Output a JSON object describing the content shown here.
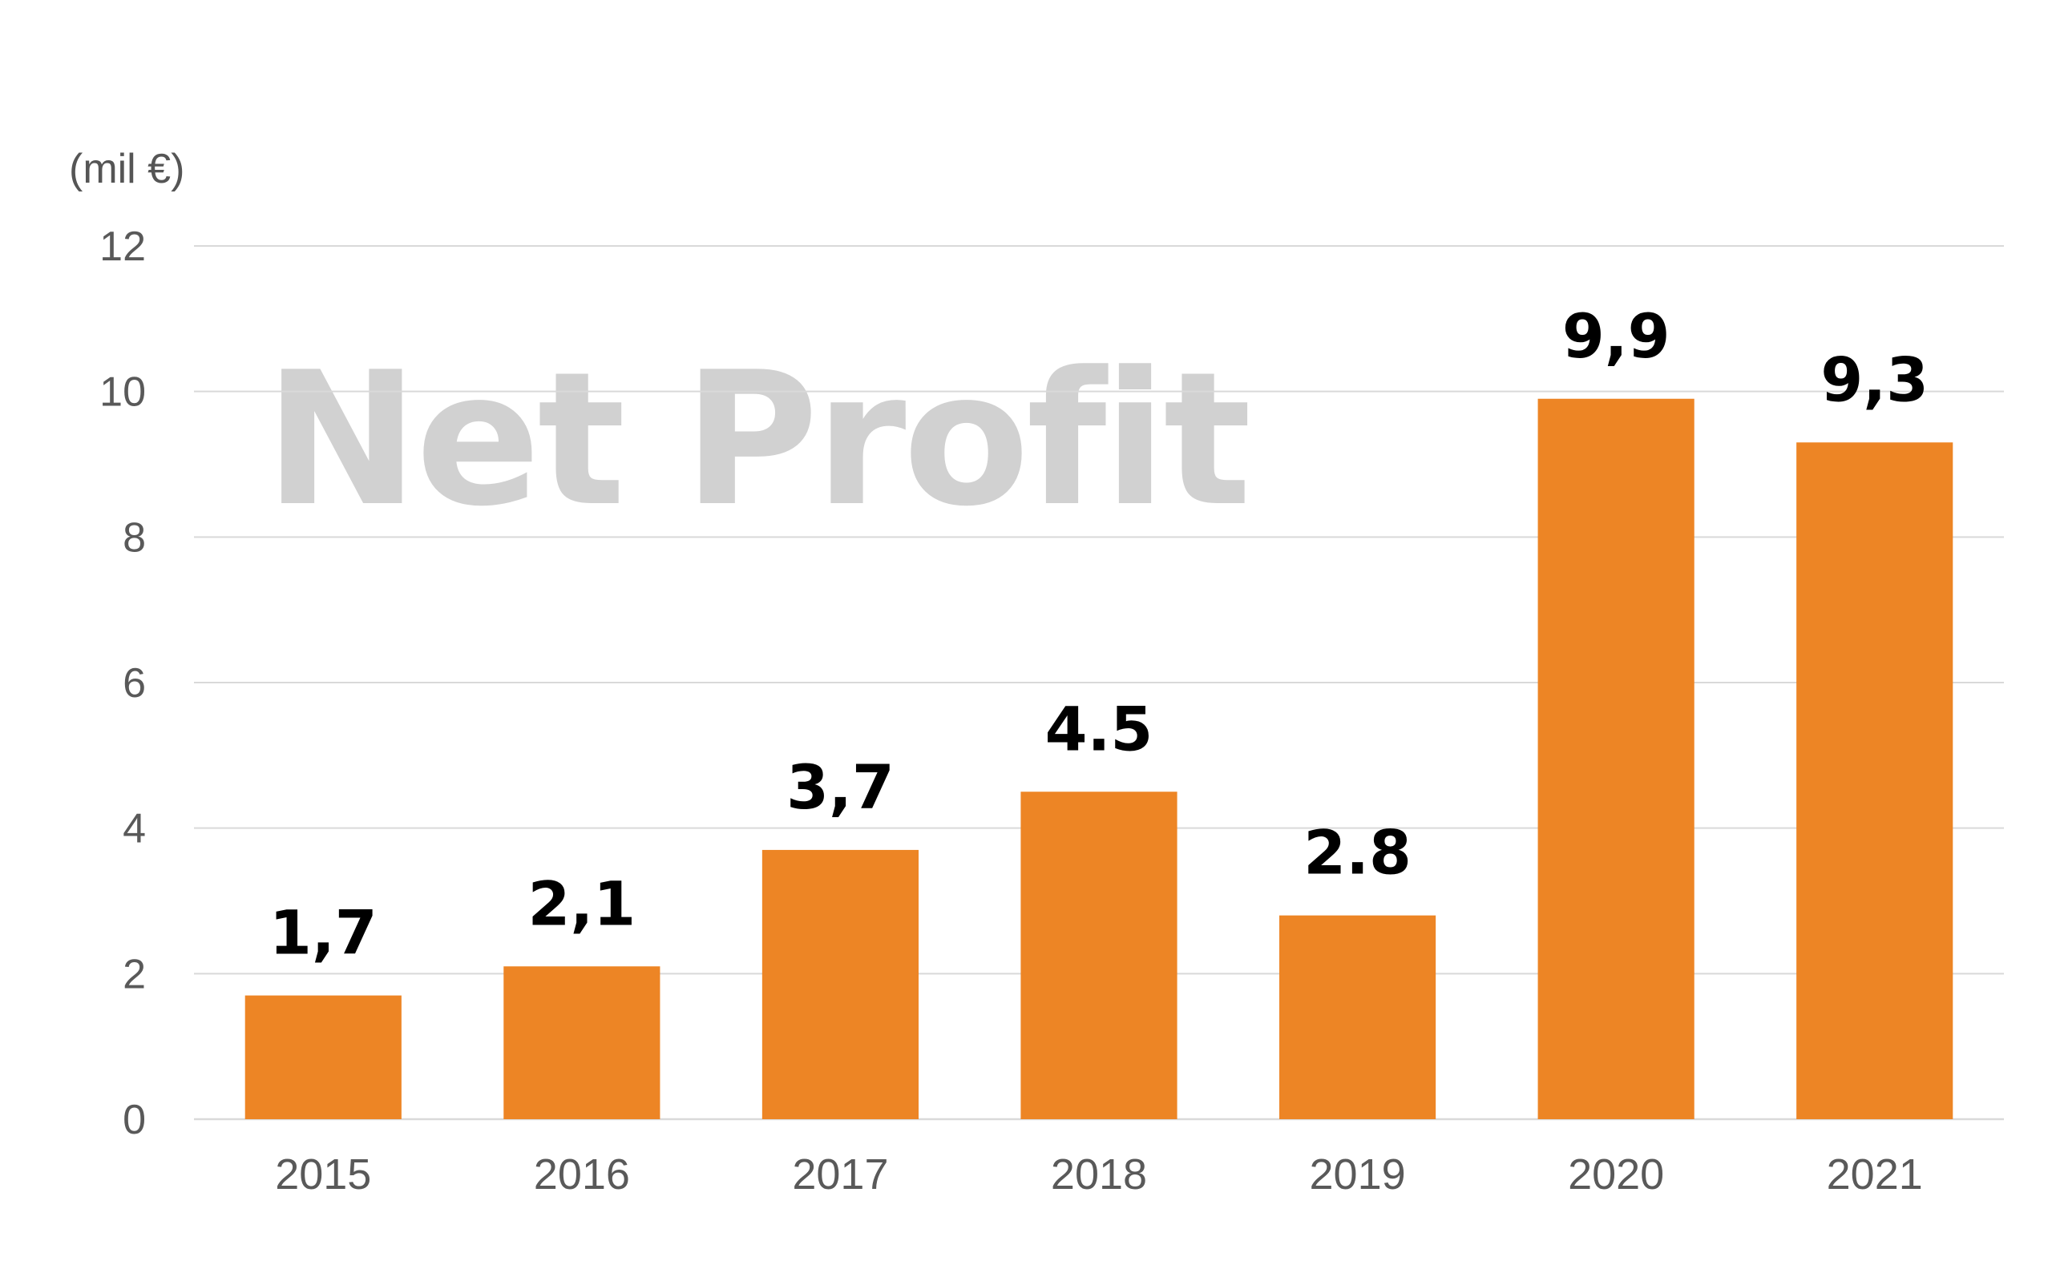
{
  "watermark_text": "Net Profit",
  "chart_data": {
    "type": "bar",
    "ylabel": "(mil €)",
    "categories": [
      "2015",
      "2016",
      "2017",
      "2018",
      "2019",
      "2020",
      "2021"
    ],
    "values": [
      1.7,
      2.1,
      3.7,
      4.5,
      2.8,
      9.9,
      9.3
    ],
    "data_labels": [
      "1,7",
      "2,1",
      "3,7",
      "4.5",
      "2.8",
      "9,9",
      "9,3"
    ],
    "ylim": [
      0,
      12
    ],
    "yticks": [
      0,
      2,
      4,
      6,
      8,
      10,
      12
    ],
    "grid": true,
    "legend": "none",
    "bar_color": "#ed8525"
  }
}
